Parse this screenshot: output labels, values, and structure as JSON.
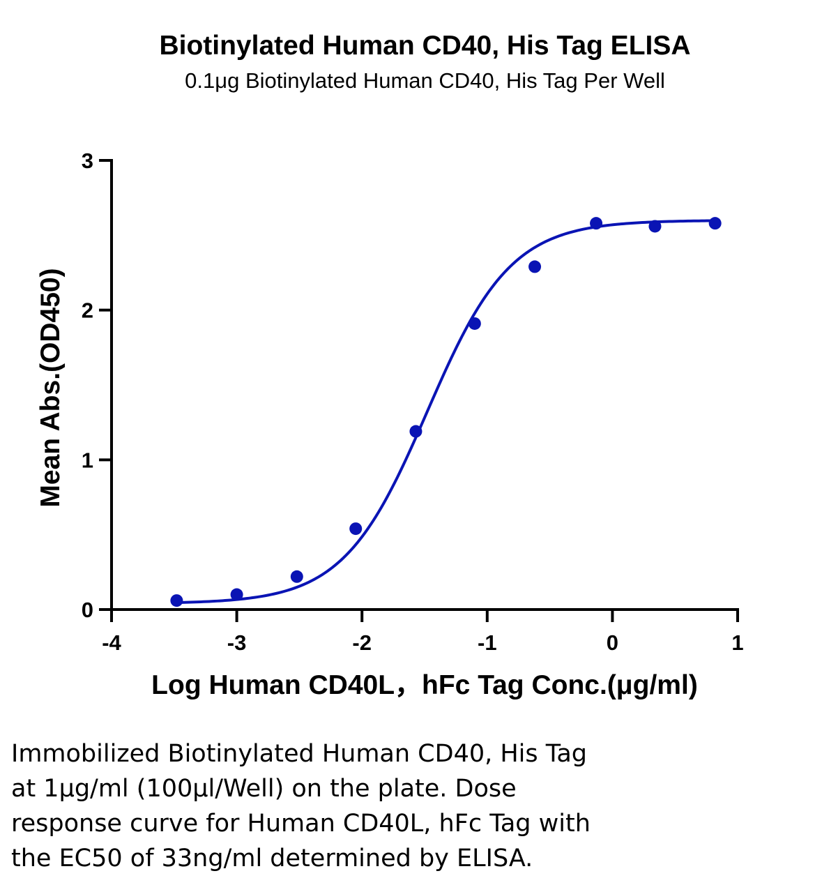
{
  "chart_data": {
    "type": "scatter",
    "title": "Biotinylated Human CD40, His Tag ELISA",
    "subtitle": "0.1μg Biotinylated Human CD40, His Tag Per Well",
    "xlabel": "Log Human CD40L，hFc Tag Conc.(μg/ml)",
    "ylabel": "Mean Abs.(OD450)",
    "xlim": [
      -4,
      1
    ],
    "ylim": [
      0,
      3
    ],
    "x_ticks": [
      "-4",
      "-3",
      "-2",
      "-1",
      "0",
      "1"
    ],
    "y_ticks": [
      "0",
      "1",
      "2",
      "3"
    ],
    "grid": false,
    "legend": "none",
    "color": "#0a14b4",
    "series": [
      {
        "x": [
          -3.48,
          -3.0,
          -2.52,
          -2.05,
          -1.57,
          -1.1,
          -0.62,
          -0.13,
          0.34,
          0.82
        ],
        "y": [
          0.06,
          0.1,
          0.22,
          0.54,
          1.19,
          1.91,
          2.29,
          2.58,
          2.56,
          2.58
        ]
      }
    ],
    "fit": {
      "model": "4PL",
      "bottom": 0.04,
      "top": 2.6,
      "log_ec50": -1.48,
      "hill": 1.3,
      "x_range": [
        -3.48,
        0.82
      ]
    }
  },
  "caption": {
    "lines": [
      "Immobilized Biotinylated Human CD40, His Tag",
      "at 1μg/ml (100μl/Well) on the plate. Dose",
      "response curve for Human CD40L, hFc Tag with",
      "the EC50 of 33ng/ml determined by ELISA."
    ]
  }
}
